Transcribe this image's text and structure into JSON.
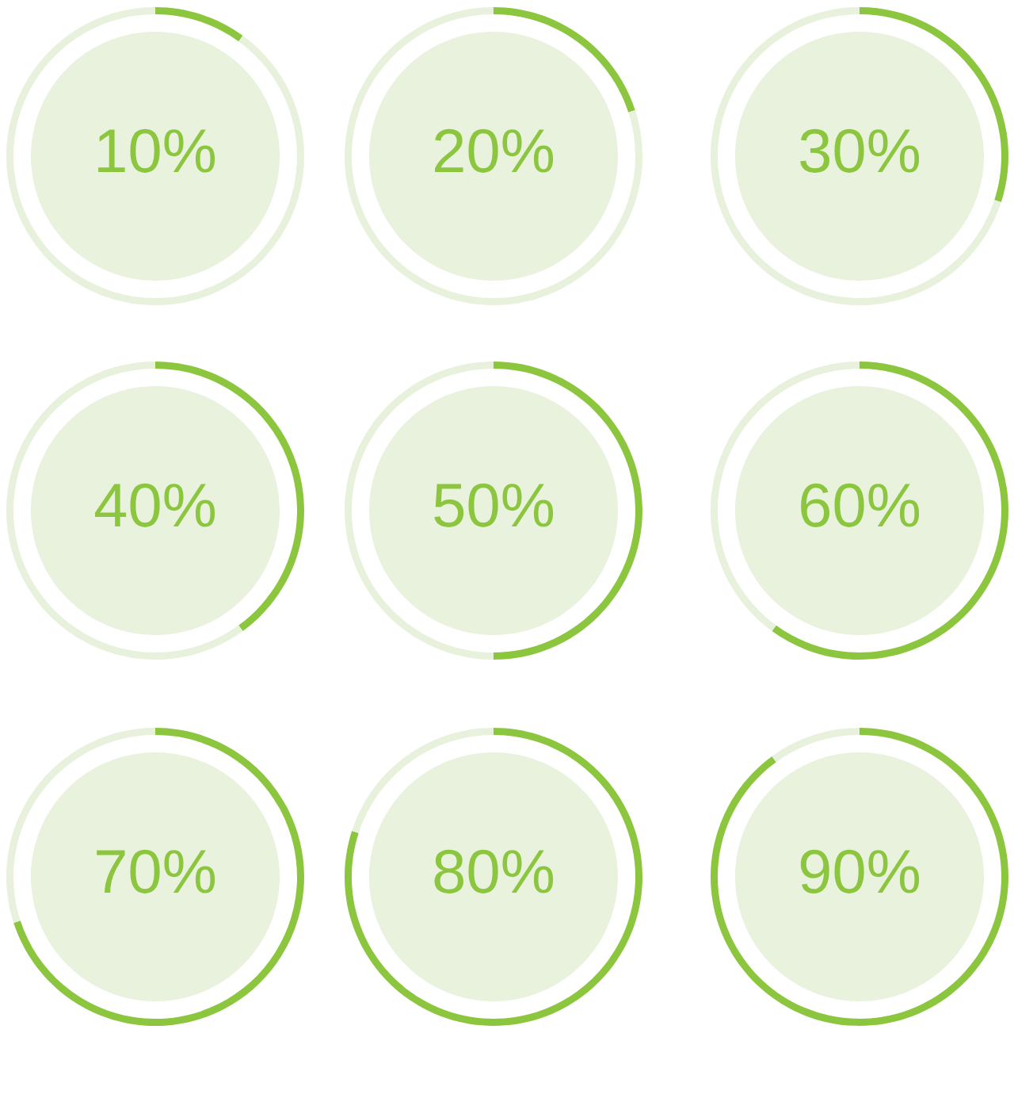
{
  "chart_data": [
    {
      "type": "donut",
      "categories": [
        null,
        null
      ],
      "values": [
        10,
        90
      ],
      "colors": [
        "#8cc63f",
        "#e8f1dc"
      ],
      "value_labels": [
        "10%",
        null
      ]
    },
    {
      "type": "donut",
      "categories": [
        null,
        null
      ],
      "values": [
        20,
        80
      ],
      "colors": [
        "#8cc63f",
        "#e8f1dc"
      ],
      "value_labels": [
        "20%",
        null
      ]
    },
    {
      "type": "donut",
      "categories": [
        null,
        null
      ],
      "values": [
        30,
        70
      ],
      "colors": [
        "#8cc63f",
        "#e8f1dc"
      ],
      "value_labels": [
        "30%",
        null
      ]
    },
    {
      "type": "donut",
      "categories": [
        null,
        null
      ],
      "values": [
        40,
        60
      ],
      "colors": [
        "#8cc63f",
        "#e8f1dc"
      ],
      "value_labels": [
        "40%",
        null
      ]
    },
    {
      "type": "donut",
      "categories": [
        null,
        null
      ],
      "values": [
        50,
        50
      ],
      "colors": [
        "#8cc63f",
        "#e8f1dc"
      ],
      "value_labels": [
        "50%",
        null
      ]
    },
    {
      "type": "donut",
      "categories": [
        null,
        null
      ],
      "values": [
        60,
        40
      ],
      "colors": [
        "#8cc63f",
        "#e8f1dc"
      ],
      "value_labels": [
        "60%",
        null
      ]
    },
    {
      "type": "donut",
      "categories": [
        null,
        null
      ],
      "values": [
        70,
        30
      ],
      "colors": [
        "#8cc63f",
        "#e8f1dc"
      ],
      "value_labels": [
        "70%",
        null
      ]
    },
    {
      "type": "donut",
      "categories": [
        null,
        null
      ],
      "values": [
        80,
        20
      ],
      "colors": [
        "#8cc63f",
        "#e8f1dc"
      ],
      "value_labels": [
        "80%",
        null
      ]
    },
    {
      "type": "donut",
      "categories": [
        null,
        null
      ],
      "values": [
        90,
        10
      ],
      "colors": [
        "#8cc63f",
        "#e8f1dc"
      ],
      "value_labels": [
        "90%",
        null
      ]
    }
  ]
}
